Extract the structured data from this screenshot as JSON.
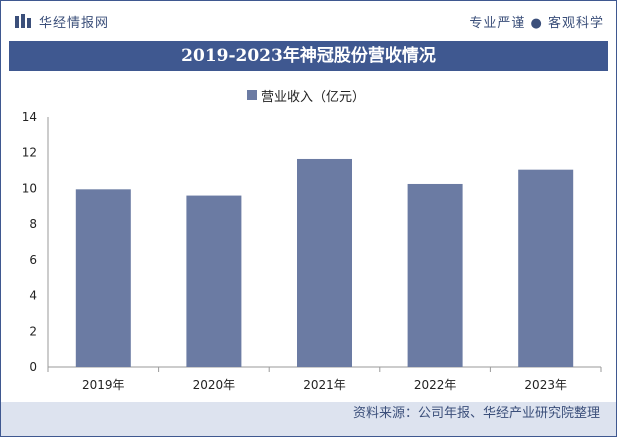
{
  "header": {
    "brand_name": "华经情报网",
    "tagline": "专业严谨 ● 客观科学"
  },
  "footer": {
    "source": "资料来源：公司年报、华经产业研究院整理"
  },
  "colors": {
    "bar": "#6b7ba3",
    "title_bar": "#3f5890",
    "footer_bg": "#dde3ef"
  },
  "chart_data": {
    "type": "bar",
    "title": "2019-2023年神冠股份营收情况",
    "categories": [
      "2019年",
      "2020年",
      "2021年",
      "2022年",
      "2023年"
    ],
    "series": [
      {
        "name": "营业收入（亿元）",
        "values": [
          9.95,
          9.6,
          11.65,
          10.25,
          11.05
        ]
      }
    ],
    "ylim": [
      0,
      14
    ],
    "yticks": [
      0,
      2,
      4,
      6,
      8,
      10,
      12,
      14
    ],
    "legend": "top-center",
    "grid": false
  }
}
